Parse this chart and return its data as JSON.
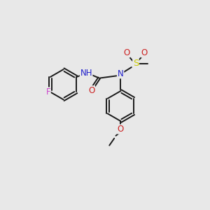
{
  "background_color": "#e8e8e8",
  "bond_color": "#1a1a1a",
  "atom_colors": {
    "F": "#cc44cc",
    "N": "#2222cc",
    "O": "#cc2222",
    "S": "#cccc00",
    "H": "#777777",
    "C": "#1a1a1a"
  },
  "figsize": [
    3.0,
    3.0
  ],
  "dpi": 100,
  "lw": 1.4,
  "ring_r": 28,
  "font_size": 8.5
}
